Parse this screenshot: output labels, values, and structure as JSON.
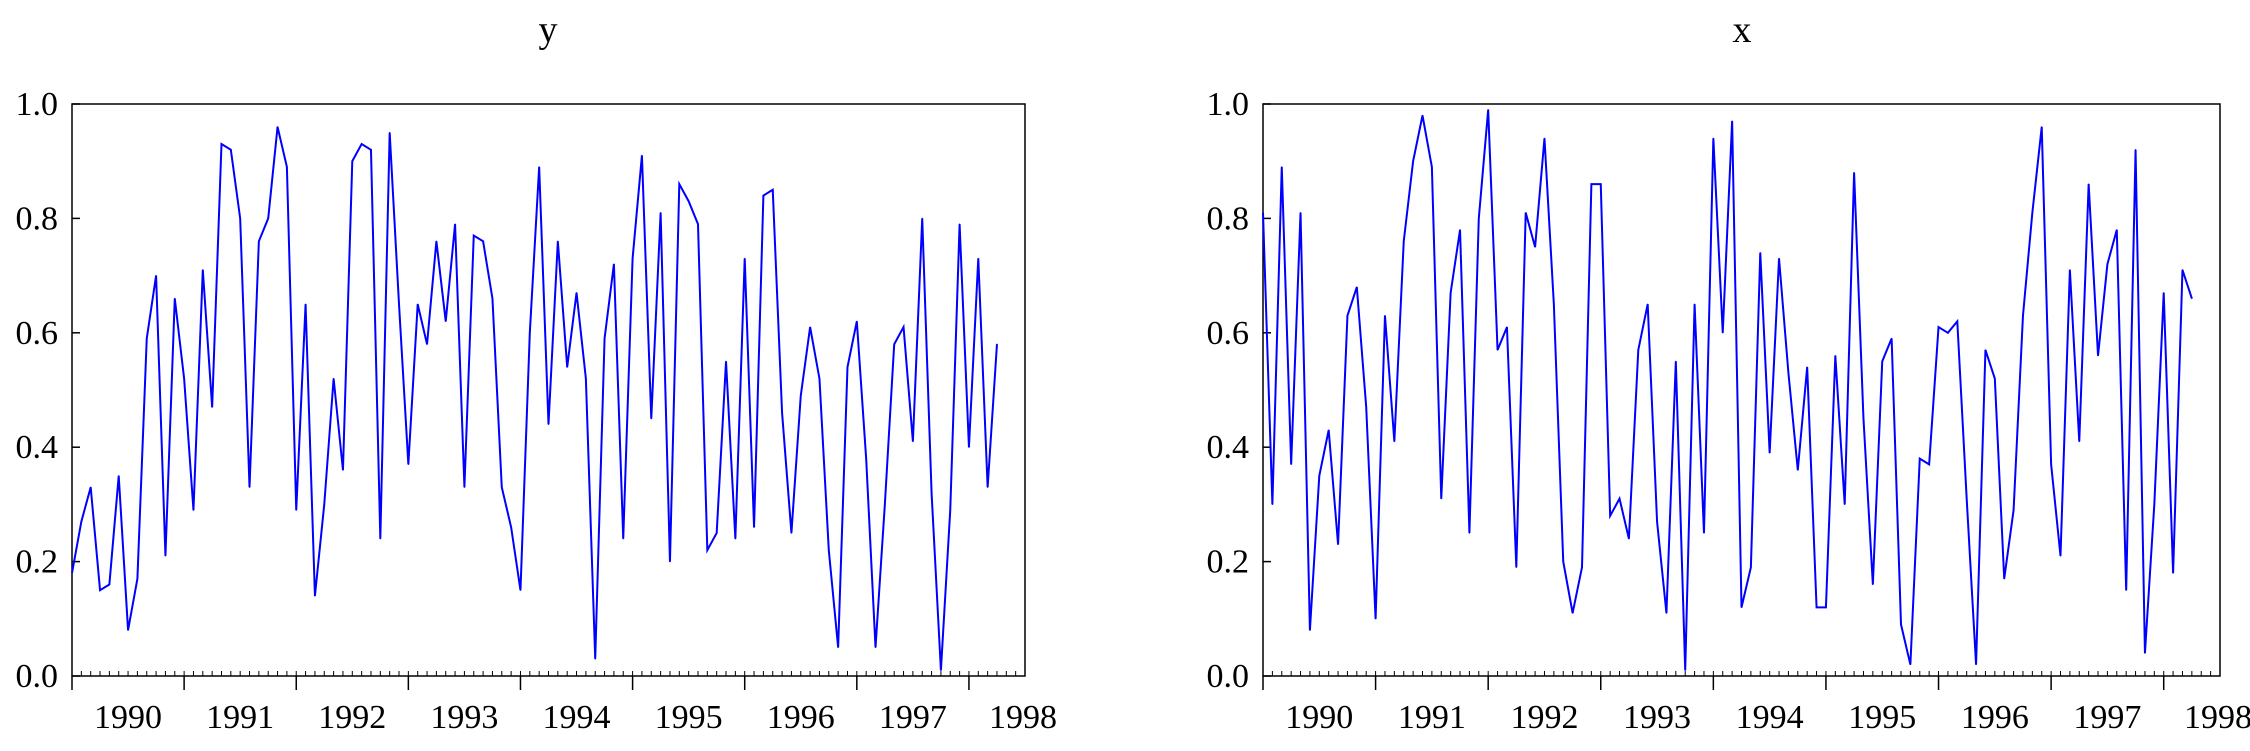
{
  "chart_data": [
    {
      "type": "line",
      "title": "y",
      "xlabel": "",
      "ylabel": "",
      "xlim": [
        1989.5,
        1998.0
      ],
      "ylim": [
        0.0,
        1.0
      ],
      "x_ticks": [
        "1990",
        "1991",
        "1992",
        "1993",
        "1994",
        "1995",
        "1996",
        "1997",
        "1998"
      ],
      "y_ticks": [
        "0.0",
        "0.2",
        "0.4",
        "0.6",
        "0.8",
        "1.0"
      ],
      "grid": false,
      "color": "#0000ff",
      "series": [
        {
          "start": 1989.5,
          "step": 0.0833333,
          "values": [
            0.18,
            0.27,
            0.33,
            0.15,
            0.16,
            0.35,
            0.08,
            0.17,
            0.59,
            0.7,
            0.21,
            0.66,
            0.52,
            0.29,
            0.71,
            0.47,
            0.93,
            0.92,
            0.8,
            0.33,
            0.76,
            0.8,
            0.96,
            0.89,
            0.29,
            0.65,
            0.14,
            0.3,
            0.52,
            0.36,
            0.9,
            0.93,
            0.92,
            0.24,
            0.95,
            0.65,
            0.37,
            0.65,
            0.58,
            0.76,
            0.62,
            0.79,
            0.33,
            0.77,
            0.76,
            0.66,
            0.33,
            0.26,
            0.15,
            0.6,
            0.89,
            0.44,
            0.76,
            0.54,
            0.67,
            0.52,
            0.03,
            0.59,
            0.72,
            0.24,
            0.73,
            0.91,
            0.45,
            0.81,
            0.2,
            0.86,
            0.83,
            0.79,
            0.22,
            0.25,
            0.55,
            0.24,
            0.73,
            0.26,
            0.84,
            0.85,
            0.46,
            0.25,
            0.49,
            0.61,
            0.52,
            0.22,
            0.05,
            0.54,
            0.62,
            0.38,
            0.05,
            0.3,
            0.58,
            0.61,
            0.41,
            0.8,
            0.32,
            0.01,
            0.29,
            0.79,
            0.4,
            0.73,
            0.33,
            0.58
          ]
        }
      ]
    },
    {
      "type": "line",
      "title": "x",
      "xlabel": "",
      "ylabel": "",
      "xlim": [
        1989.5,
        1998.0
      ],
      "ylim": [
        0.0,
        1.0
      ],
      "x_ticks": [
        "1990",
        "1991",
        "1992",
        "1993",
        "1994",
        "1995",
        "1996",
        "1997",
        "1998"
      ],
      "y_ticks": [
        "0.0",
        "0.2",
        "0.4",
        "0.6",
        "0.8",
        "1.0"
      ],
      "grid": false,
      "color": "#0000ff",
      "series": [
        {
          "start": 1989.5,
          "step": 0.0833333,
          "values": [
            0.81,
            0.3,
            0.89,
            0.37,
            0.81,
            0.08,
            0.35,
            0.43,
            0.23,
            0.63,
            0.68,
            0.47,
            0.1,
            0.63,
            0.41,
            0.76,
            0.9,
            0.98,
            0.89,
            0.31,
            0.67,
            0.78,
            0.25,
            0.8,
            0.99,
            0.57,
            0.61,
            0.19,
            0.81,
            0.75,
            0.94,
            0.65,
            0.2,
            0.11,
            0.19,
            0.86,
            0.86,
            0.28,
            0.31,
            0.24,
            0.57,
            0.65,
            0.27,
            0.11,
            0.55,
            0.01,
            0.65,
            0.25,
            0.94,
            0.6,
            0.97,
            0.12,
            0.19,
            0.74,
            0.39,
            0.73,
            0.53,
            0.36,
            0.54,
            0.12,
            0.12,
            0.56,
            0.3,
            0.88,
            0.45,
            0.16,
            0.55,
            0.59,
            0.09,
            0.02,
            0.38,
            0.37,
            0.61,
            0.6,
            0.62,
            0.31,
            0.02,
            0.57,
            0.52,
            0.17,
            0.29,
            0.63,
            0.81,
            0.96,
            0.37,
            0.21,
            0.71,
            0.41,
            0.86,
            0.56,
            0.72,
            0.78,
            0.15,
            0.92,
            0.04,
            0.3,
            0.67,
            0.18,
            0.71,
            0.66
          ]
        }
      ]
    }
  ]
}
